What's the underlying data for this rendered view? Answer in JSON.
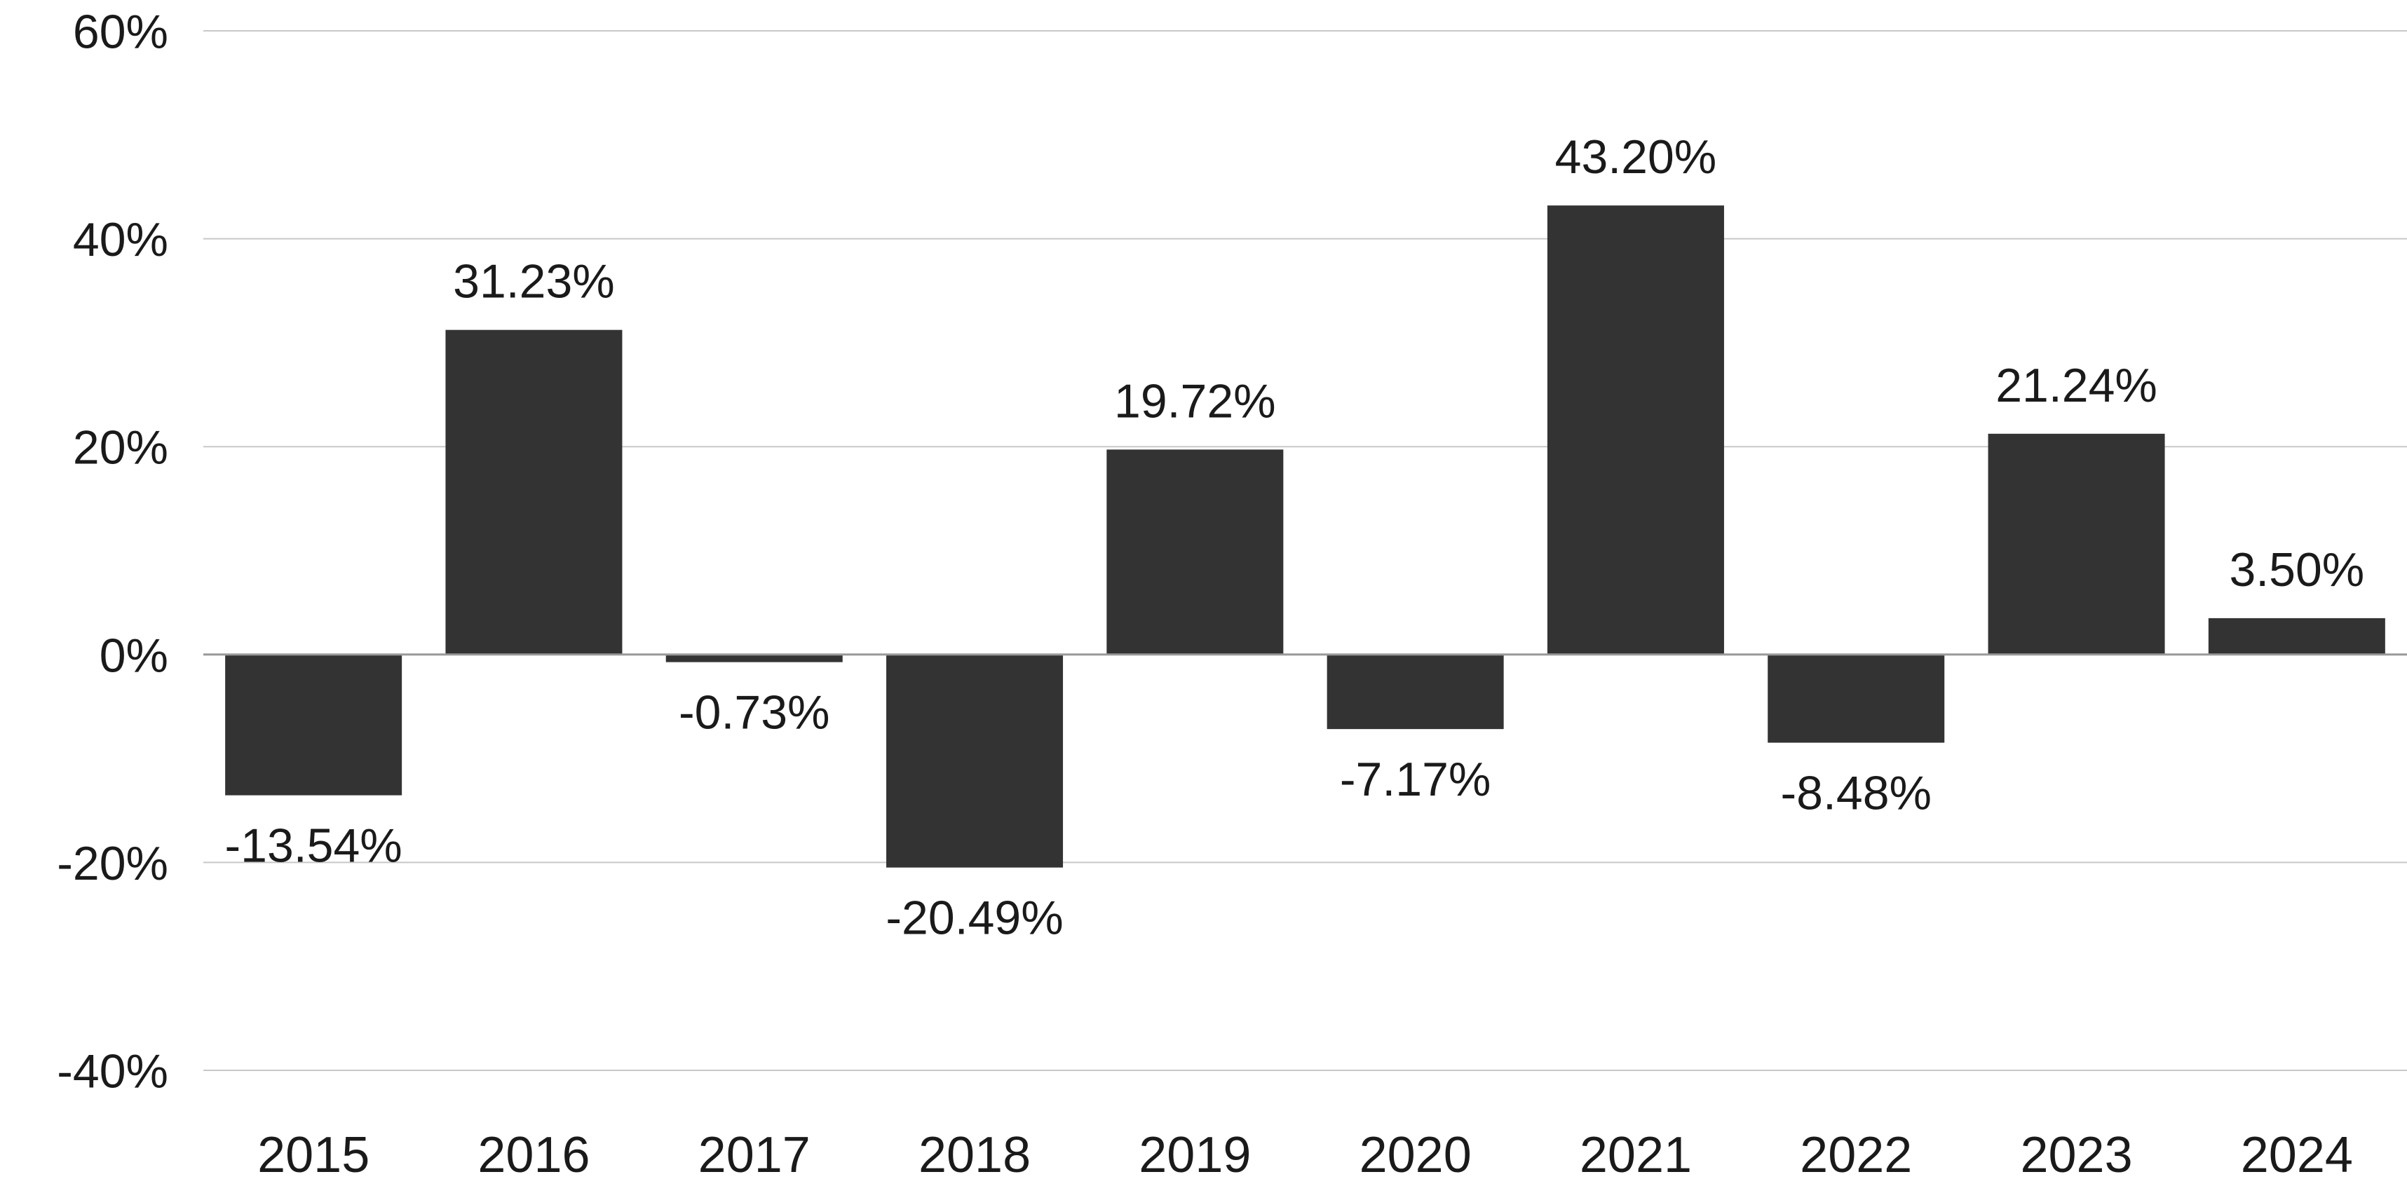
{
  "chart_data": {
    "type": "bar",
    "categories": [
      "2015",
      "2016",
      "2017",
      "2018",
      "2019",
      "2020",
      "2021",
      "2022",
      "2023",
      "2024"
    ],
    "values": [
      -13.54,
      31.23,
      -0.73,
      -20.49,
      19.72,
      -7.17,
      43.2,
      -8.48,
      21.24,
      3.5
    ],
    "data_labels": [
      "-13.54%",
      "31.23%",
      "-0.73%",
      "-20.49%",
      "19.72%",
      "-7.17%",
      "43.20%",
      "-8.48%",
      "21.24%",
      "3.50%"
    ],
    "y_ticks": [
      60,
      40,
      20,
      0,
      -20,
      -40
    ],
    "y_tick_labels": [
      "60%",
      "40%",
      "20%",
      "0%",
      "-20%",
      "-40%"
    ],
    "ylim": [
      -40,
      60
    ],
    "title": "",
    "xlabel": "",
    "ylabel": "",
    "grid": true,
    "legend": "none",
    "colors": {
      "bar": "#333333",
      "grid": "#c8c8c8",
      "zero_line": "#999999",
      "text": "#1a1a1a"
    }
  }
}
